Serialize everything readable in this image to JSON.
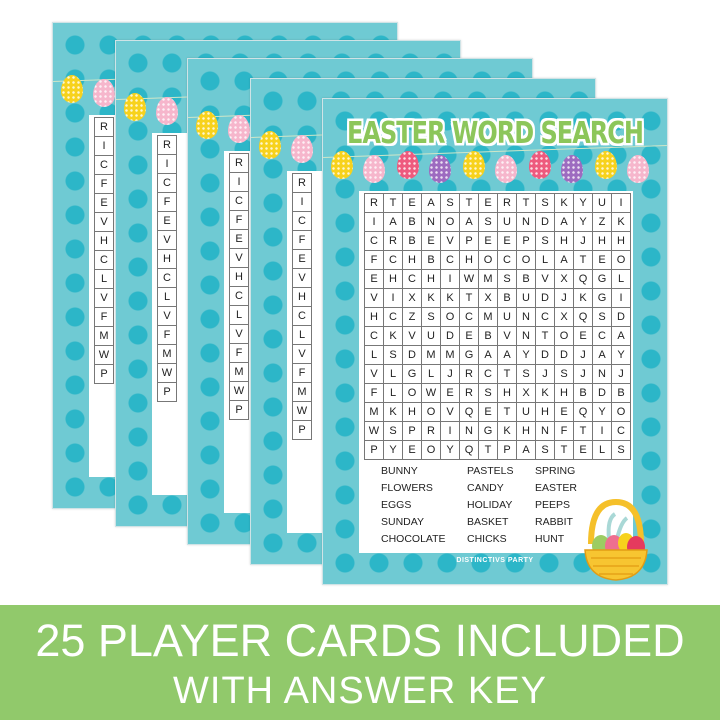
{
  "card": {
    "title": "EASTER WORD SEARCH",
    "grid": [
      "RTEASTERTSKYUI",
      "IABNOASUNDAYZK",
      "CRBEVPEEPSHJHH",
      "FCHBCHOCOLATEO",
      "EHCHIWMSBVXQGL",
      "VIXKKTXBUDJKGI",
      "HCZSOCMUNCXQSD",
      "CKVUDEBVNTOECA",
      "LSDMMGAAYDDJAY",
      "VLGLJRCTSJSJNJ",
      "FLOWERSHXKHBDB",
      "MKHOVQETUHEQYO",
      "WSPRINGKHNFTIC",
      "PYEOYQTPASTELS"
    ],
    "word_columns": [
      [
        "BUNNY",
        "FLOWERS",
        "EGGS",
        "SUNDAY",
        "CHOCOLATE"
      ],
      [
        "PASTELS",
        "CANDY",
        "HOLIDAY",
        "BASKET",
        "CHICKS"
      ],
      [
        "SPRING",
        "EASTER",
        "PEEPS",
        "RABBIT",
        "HUNT"
      ]
    ],
    "logo": "DISTINCTIVS PARTY",
    "egg_colors": [
      "#f7d21c",
      "#f6b6cc",
      "#ee5a7e",
      "#9d6bc0",
      "#f7d21c",
      "#f6b6cc",
      "#ee5a7e",
      "#9d6bc0",
      "#f7d21c",
      "#f6b6cc"
    ]
  },
  "colors": {
    "banner": "#91c96b",
    "teal": "#6fcad3",
    "dot": "#2cb6c8",
    "title": "#8cc65a"
  },
  "banner": {
    "line1": "25 PLAYER CARDS INCLUDED",
    "line2": "WITH ANSWER KEY"
  }
}
